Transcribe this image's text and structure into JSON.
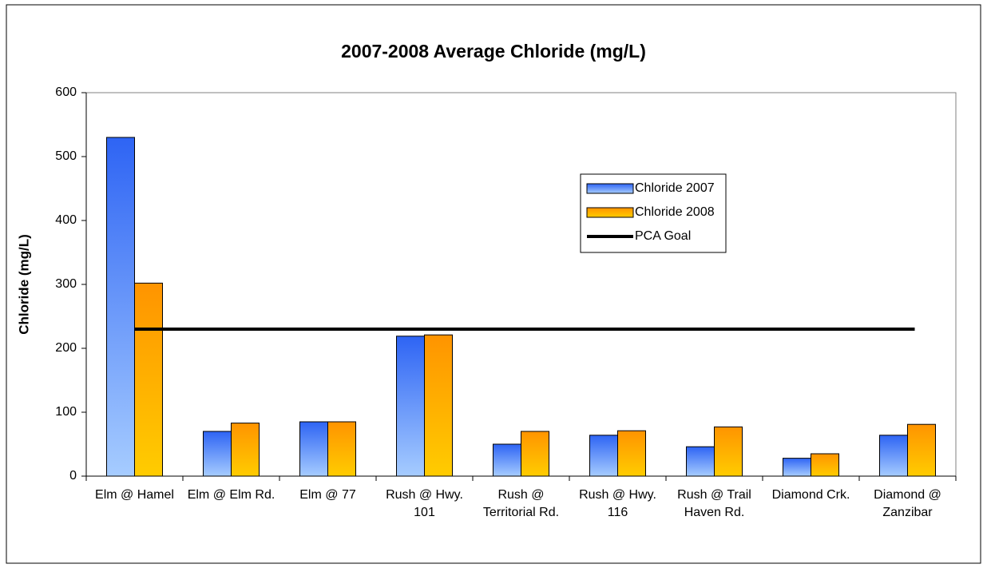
{
  "chart_data": {
    "type": "bar",
    "title": "2007-2008 Average Chloride (mg/L)",
    "y_label": "Chloride (mg/L)",
    "categories": [
      "Elm @ Hamel",
      "Elm @ Elm Rd.",
      "Elm @ 77",
      "Rush @ Hwy. 101",
      "Rush @ Territorial Rd.",
      "Rush @ Hwy. 116",
      "Rush @ Trail Haven Rd.",
      "Diamond Crk.",
      "Diamond @ Zanzibar"
    ],
    "series": [
      {
        "name": "Chloride 2007",
        "color": "#2e64f4",
        "gradient_end": "#a6ccff",
        "values": [
          530,
          70,
          85,
          219,
          50,
          64,
          46,
          28,
          64
        ]
      },
      {
        "name": "Chloride 2008",
        "color": "#ff9400",
        "gradient_end": "#ffcc00",
        "values": [
          302,
          83,
          85,
          221,
          70,
          71,
          77,
          35,
          81
        ]
      }
    ],
    "reference_line": {
      "name": "PCA Goal",
      "value": 230,
      "color": "#000000"
    },
    "ylim": [
      0,
      600
    ],
    "yticks": [
      0,
      100,
      200,
      300,
      400,
      500,
      600
    ],
    "legend": "upper right"
  }
}
